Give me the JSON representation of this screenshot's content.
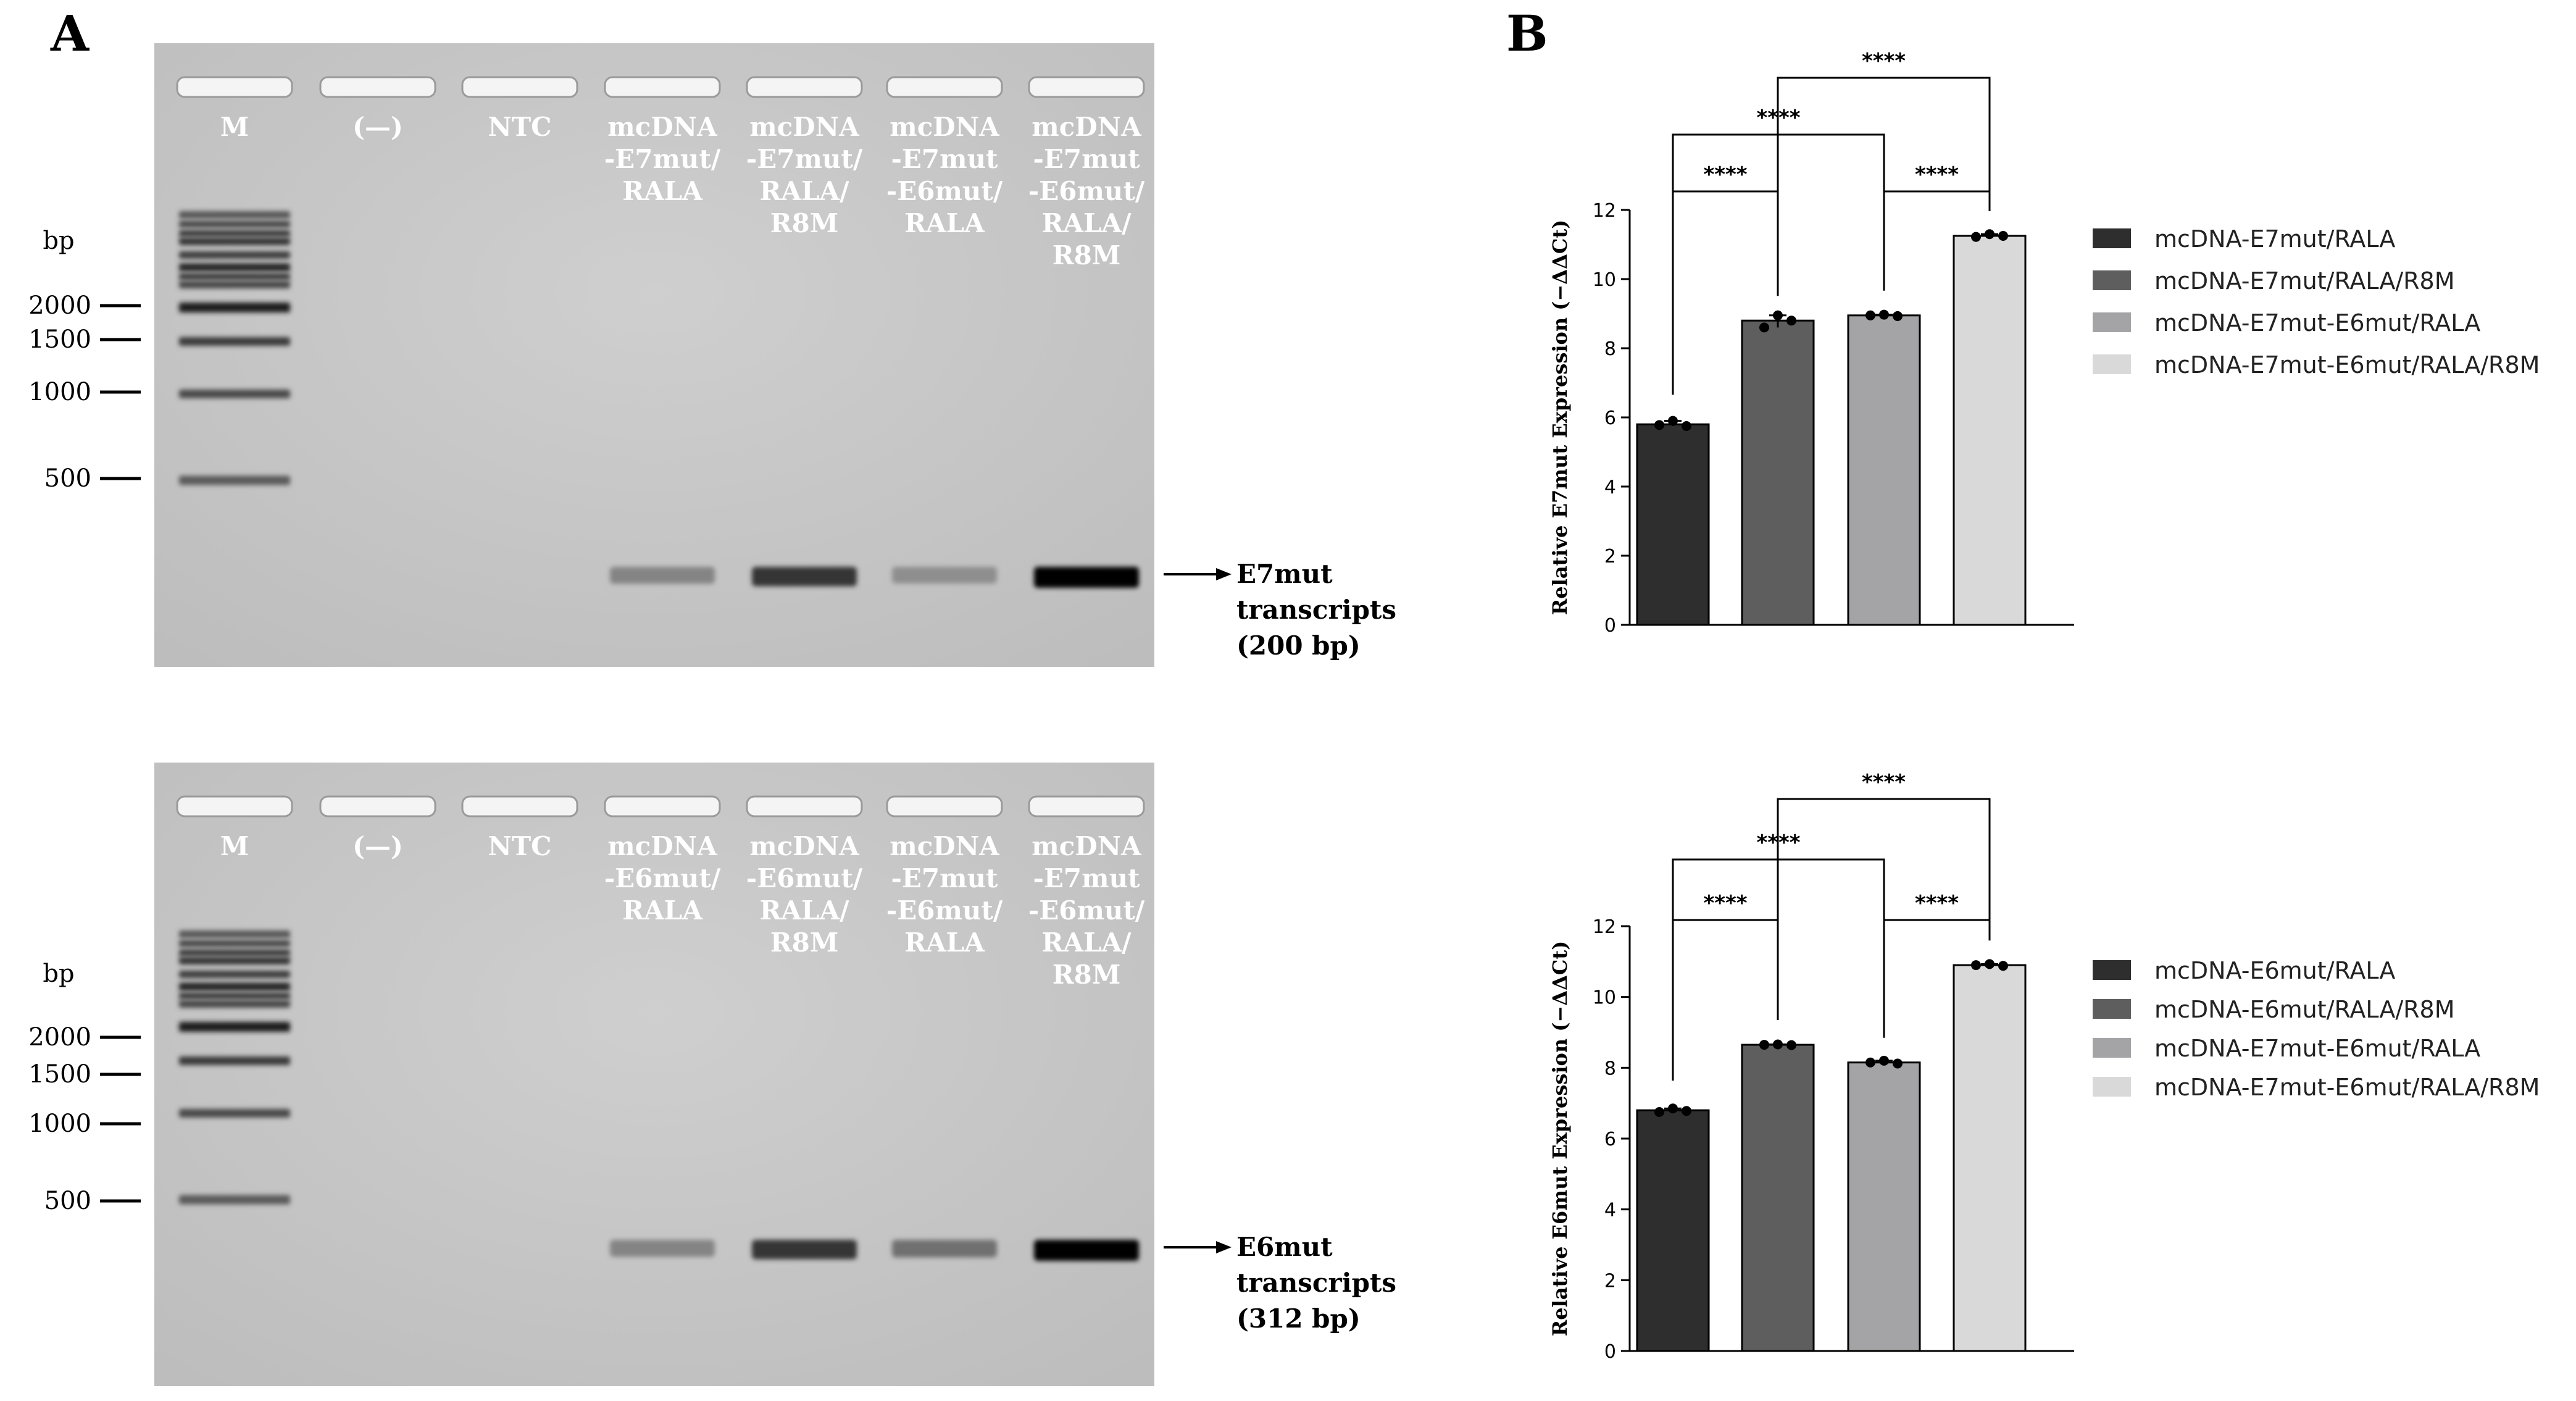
{
  "panel_a_label": "A",
  "panel_b_label": "B",
  "gels": [
    {
      "lanes": [
        {
          "lines": [
            "M"
          ]
        },
        {
          "lines": [
            "(—)"
          ]
        },
        {
          "lines": [
            "NTC"
          ]
        },
        {
          "lines": [
            "mcDNA",
            "-E7mut/",
            "RALA"
          ]
        },
        {
          "lines": [
            "mcDNA",
            "-E7mut/",
            "RALA/",
            "R8M"
          ]
        },
        {
          "lines": [
            "mcDNA",
            "-E7mut",
            "-E6mut/",
            "RALA"
          ]
        },
        {
          "lines": [
            "mcDNA",
            "-E7mut",
            "-E6mut/",
            "RALA/",
            "R8M"
          ]
        }
      ],
      "bp_title": "bp",
      "markers": [
        "2000",
        "1500",
        "1000",
        "500"
      ],
      "annotation": [
        "E7mut",
        "transcripts",
        "(200 bp)"
      ],
      "band_intensity": [
        0,
        0,
        0,
        0.35,
        0.75,
        0.3,
        1.0
      ]
    },
    {
      "lanes": [
        {
          "lines": [
            "M"
          ]
        },
        {
          "lines": [
            "(—)"
          ]
        },
        {
          "lines": [
            "NTC"
          ]
        },
        {
          "lines": [
            "mcDNA",
            "-E6mut/",
            "RALA"
          ]
        },
        {
          "lines": [
            "mcDNA",
            "-E6mut/",
            "RALA/",
            "R8M"
          ]
        },
        {
          "lines": [
            "mcDNA",
            "-E7mut",
            "-E6mut/",
            "RALA"
          ]
        },
        {
          "lines": [
            "mcDNA",
            "-E7mut",
            "-E6mut/",
            "RALA/",
            "R8M"
          ]
        }
      ],
      "bp_title": "bp",
      "markers": [
        "2000",
        "1500",
        "1000",
        "500"
      ],
      "annotation": [
        "E6mut",
        "transcripts",
        "(312 bp)"
      ],
      "band_intensity": [
        0,
        0,
        0,
        0.35,
        0.75,
        0.45,
        1.0
      ]
    }
  ],
  "chart_data": [
    {
      "type": "bar",
      "ylabel": "Relative E7mut Expression (−ΔΔCt)",
      "ylim": [
        0,
        12
      ],
      "yticks": [
        0,
        2,
        4,
        6,
        8,
        10,
        12
      ],
      "categories": [
        "mcDNA-E7mut/RALA",
        "mcDNA-E7mut/RALA/R8M",
        "mcDNA-E7mut-E6mut/RALA",
        "mcDNA-E7mut-E6mut/RALA/R8M"
      ],
      "values": [
        5.8,
        8.8,
        8.95,
        11.25
      ],
      "points": [
        [
          5.78,
          5.9,
          5.75
        ],
        [
          8.6,
          8.95,
          8.8
        ],
        [
          8.95,
          8.97,
          8.93
        ],
        [
          11.22,
          11.3,
          11.25
        ]
      ],
      "colors": [
        "#2e2e2e",
        "#5e5e5e",
        "#a4a4a6",
        "#d9d9d9"
      ],
      "legend": [
        "mcDNA-E7mut/RALA",
        "mcDNA-E7mut/RALA/R8M",
        "mcDNA-E7mut-E6mut/RALA",
        "mcDNA-E7mut-E6mut/RALA/R8M"
      ],
      "legend_position": "right",
      "comparisons": [
        {
          "from": 0,
          "to": 1,
          "label": "****"
        },
        {
          "from": 2,
          "to": 3,
          "label": "****"
        },
        {
          "from": 0,
          "to": 2,
          "label": "****"
        },
        {
          "from": 1,
          "to": 3,
          "label": "****"
        }
      ]
    },
    {
      "type": "bar",
      "ylabel": "Relative E6mut Expression (−ΔΔCt)",
      "ylim": [
        0,
        12
      ],
      "yticks": [
        0,
        2,
        4,
        6,
        8,
        10,
        12
      ],
      "categories": [
        "mcDNA-E6mut/RALA",
        "mcDNA-E6mut/RALA/R8M",
        "mcDNA-E7mut-E6mut/RALA",
        "mcDNA-E7mut-E6mut/RALA/R8M"
      ],
      "values": [
        6.8,
        8.65,
        8.15,
        10.9
      ],
      "points": [
        [
          6.75,
          6.85,
          6.78
        ],
        [
          8.65,
          8.66,
          8.64
        ],
        [
          8.15,
          8.2,
          8.12
        ],
        [
          10.9,
          10.93,
          10.88
        ]
      ],
      "colors": [
        "#2e2e2e",
        "#5e5e5e",
        "#a4a4a6",
        "#d9d9d9"
      ],
      "legend": [
        "mcDNA-E6mut/RALA",
        "mcDNA-E6mut/RALA/R8M",
        "mcDNA-E7mut-E6mut/RALA",
        "mcDNA-E7mut-E6mut/RALA/R8M"
      ],
      "legend_position": "right",
      "comparisons": [
        {
          "from": 0,
          "to": 1,
          "label": "****"
        },
        {
          "from": 2,
          "to": 3,
          "label": "****"
        },
        {
          "from": 0,
          "to": 2,
          "label": "****"
        },
        {
          "from": 1,
          "to": 3,
          "label": "****"
        }
      ]
    }
  ]
}
